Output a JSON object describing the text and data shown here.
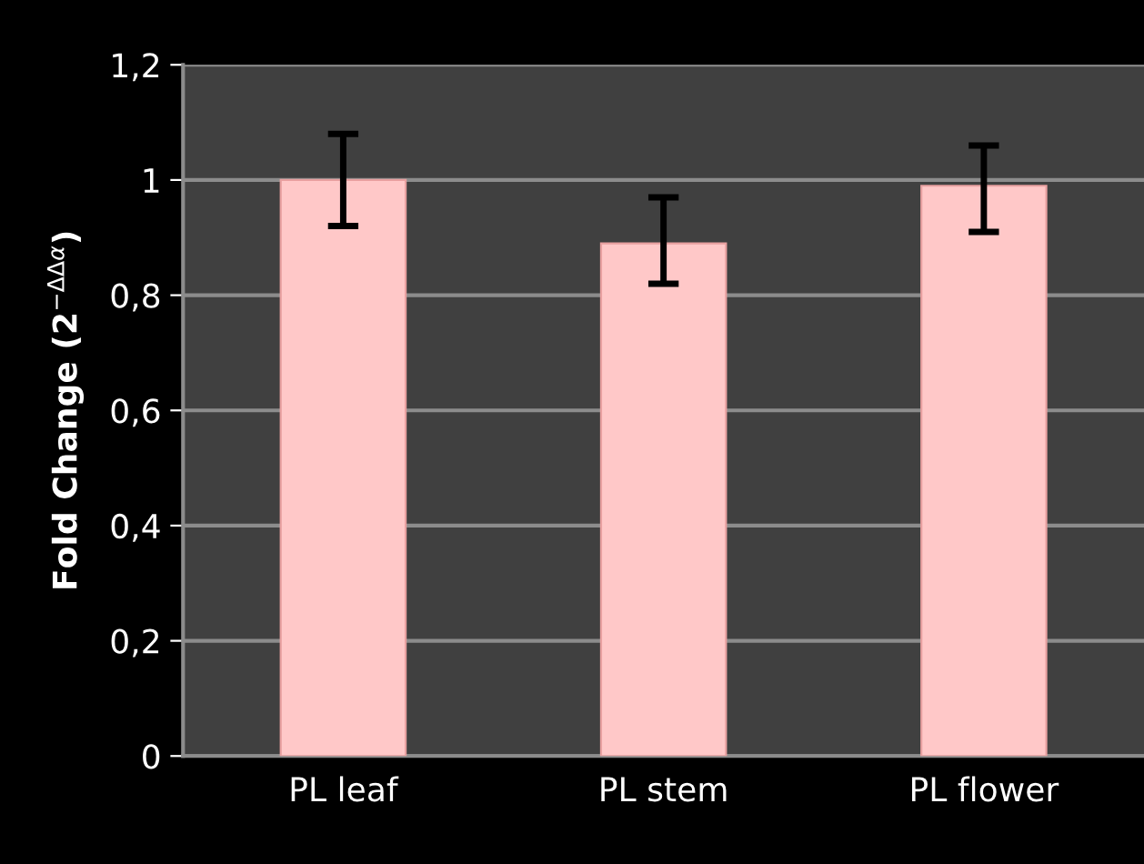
{
  "chart_data": {
    "type": "bar",
    "ylabel": "Fold Change (2$^{−ΔΔα}$)",
    "categories": [
      "PL leaf",
      "PL stem",
      "PL flower"
    ],
    "values": [
      1.0,
      0.89,
      0.99
    ],
    "errors": [
      [
        0.92,
        1.08
      ],
      [
        0.82,
        0.97
      ],
      [
        0.91,
        1.06
      ]
    ],
    "color": "#ffc8c8",
    "ylim": [
      0,
      1.2
    ],
    "yticks": [
      {
        "value": 0,
        "label": "0"
      },
      {
        "value": 0.2,
        "label": "0,2"
      },
      {
        "value": 0.4,
        "label": "0,4"
      },
      {
        "value": 0.6,
        "label": "0,6"
      },
      {
        "value": 0.8,
        "label": "0,8"
      },
      {
        "value": 1,
        "label": "1"
      },
      {
        "value": 1.2,
        "label": "1,2"
      }
    ],
    "grid": "y"
  }
}
